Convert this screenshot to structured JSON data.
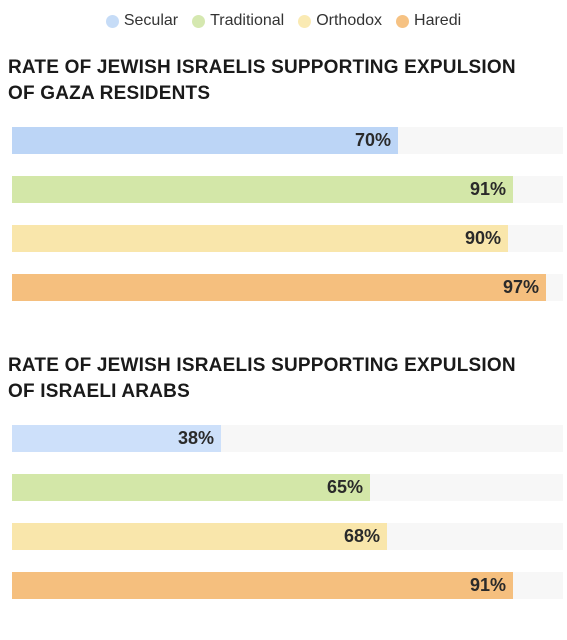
{
  "legend": [
    {
      "label": "Secular",
      "color": "#c6dcf7"
    },
    {
      "label": "Traditional",
      "color": "#d5e8b0"
    },
    {
      "label": "Orthodox",
      "color": "#faeab3"
    },
    {
      "label": "Haredi",
      "color": "#f6c283"
    }
  ],
  "chart_data": [
    {
      "type": "bar",
      "orientation": "horizontal",
      "title": "RATE OF JEWISH ISRAELIS SUPPORTING EXPULSION OF GAZA RESIDENTS",
      "categories": [
        "Secular",
        "Traditional",
        "Orthodox",
        "Haredi"
      ],
      "values": [
        70,
        91,
        90,
        97
      ],
      "value_labels": [
        "70%",
        "91%",
        "90%",
        "97%"
      ],
      "colors": [
        "#bcd5f6",
        "#d3e7a8",
        "#f9e6ab",
        "#f5bf7e"
      ],
      "xlim": [
        0,
        100
      ],
      "unit": "%"
    },
    {
      "type": "bar",
      "orientation": "horizontal",
      "title": "RATE OF JEWISH ISRAELIS SUPPORTING EXPULSION OF ISRAELI ARABS",
      "categories": [
        "Secular",
        "Traditional",
        "Orthodox",
        "Haredi"
      ],
      "values": [
        38,
        65,
        68,
        91
      ],
      "value_labels": [
        "38%",
        "65%",
        "68%",
        "91%"
      ],
      "colors": [
        "#cde0fa",
        "#d3e7a8",
        "#f9e6ab",
        "#f5bf7e"
      ],
      "xlim": [
        0,
        100
      ],
      "unit": "%"
    }
  ]
}
